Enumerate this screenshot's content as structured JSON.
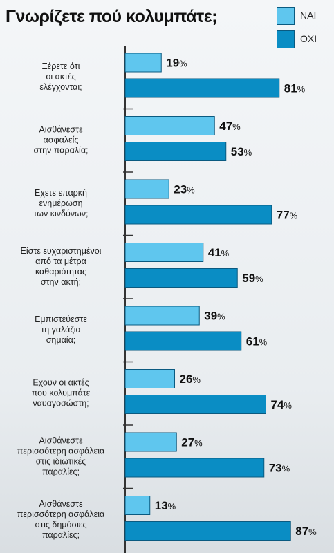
{
  "colors": {
    "yes": "#5fc6ee",
    "no": "#0a8dc4",
    "bar_stroke": "#0a5a80",
    "grid": "#333333"
  },
  "chart_data": {
    "type": "bar",
    "orientation": "horizontal",
    "title": "Γνωρίζετε πού κολυμπάτε;",
    "legend_position": "top-right",
    "unit": "%",
    "xlim": [
      0,
      100
    ],
    "categories": [
      [
        "Ξέρετε ότι",
        "οι ακτές",
        "ελέγχονται;"
      ],
      [
        "Αισθάνεστε",
        "ασφαλείς",
        "στην παραλία;"
      ],
      [
        "Εχετε επαρκή",
        "ενημέρωση",
        "των κινδύνων;"
      ],
      [
        "Είστε ευχαριστημένοι",
        "από τα μέτρα",
        "καθαριότητας",
        "στην ακτή;"
      ],
      [
        "Εμπιστεύεστε",
        "τη γαλάζια",
        "σημαία;"
      ],
      [
        "Εχουν οι ακτές",
        "που κολυμπάτε",
        "ναυαγοσώστη;"
      ],
      [
        "Αισθάνεστε",
        "περισσότερη ασφάλεια",
        "στις ιδιωτικές",
        "παραλίες;"
      ],
      [
        "Αισθάνεστε",
        "περισσότερη ασφάλεια",
        "στις δημόσιες",
        "παραλίες;"
      ]
    ],
    "series": [
      {
        "name": "ΝΑΙ",
        "values": [
          19,
          47,
          23,
          41,
          39,
          26,
          27,
          13
        ]
      },
      {
        "name": "ΟΧΙ",
        "values": [
          81,
          53,
          77,
          59,
          61,
          74,
          73,
          87
        ]
      }
    ]
  }
}
